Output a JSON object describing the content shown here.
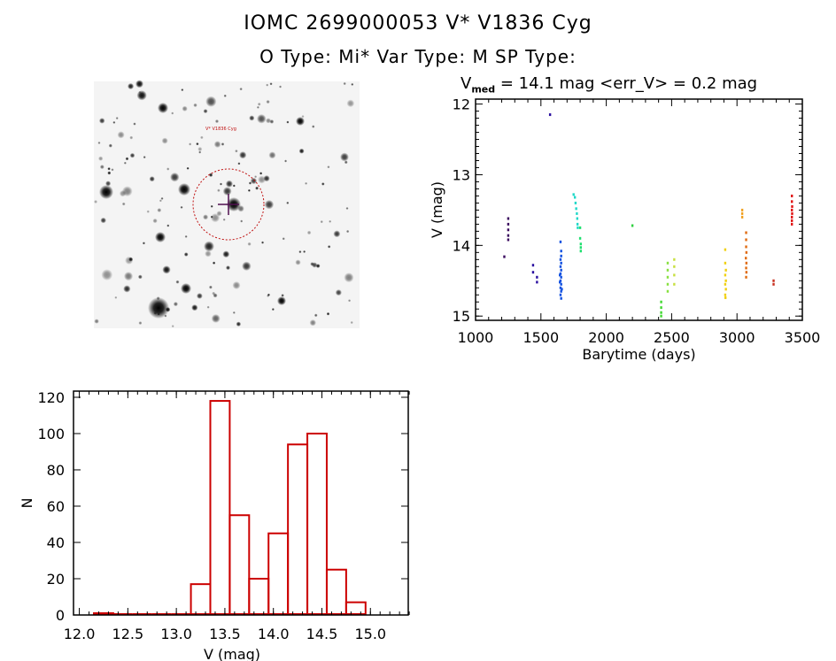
{
  "header": {
    "title": "IOMC 2699000053    V* V1836 Cyg",
    "subtitle": "O Type: Mi*  Var Type: M  SP Type:"
  },
  "image_panel": {
    "target_label": "V* V1836 Cyg"
  },
  "chart_data": [
    {
      "type": "scatter",
      "title_prefix": "V",
      "title_sub": "med",
      "title_rest": " = 14.1 mag <err_V> = 0.2 mag",
      "xlabel": "Barytime (days)",
      "ylabel": "V (mag)",
      "xlim": [
        1000,
        3500
      ],
      "ylim": [
        15.06,
        11.93
      ],
      "xticks": [
        1000,
        1500,
        2000,
        2500,
        3000,
        3500
      ],
      "yticks": [
        12,
        13,
        14,
        15
      ],
      "series": [
        {
          "color": "#3a0a5e",
          "points": [
            [
              1220,
              14.16
            ],
            [
              1250,
              13.62
            ],
            [
              1250,
              13.7
            ],
            [
              1250,
              13.78
            ],
            [
              1250,
              13.86
            ],
            [
              1250,
              13.92
            ]
          ]
        },
        {
          "color": "#2a10a0",
          "points": [
            [
              1440,
              14.28
            ],
            [
              1440,
              14.38
            ],
            [
              1470,
              14.45
            ],
            [
              1470,
              14.52
            ],
            [
              1570,
              12.15
            ]
          ]
        },
        {
          "color": "#1050e0",
          "points": [
            [
              1650,
              13.95
            ],
            [
              1655,
              14.08
            ],
            [
              1655,
              14.15
            ],
            [
              1650,
              14.2
            ],
            [
              1655,
              14.25
            ],
            [
              1650,
              14.3
            ],
            [
              1655,
              14.35
            ],
            [
              1650,
              14.4
            ],
            [
              1655,
              14.45
            ],
            [
              1650,
              14.5
            ],
            [
              1655,
              14.55
            ],
            [
              1650,
              14.6
            ],
            [
              1655,
              14.65
            ],
            [
              1650,
              14.7
            ],
            [
              1655,
              14.75
            ],
            [
              1645,
              14.42
            ],
            [
              1645,
              14.52
            ],
            [
              1660,
              14.62
            ]
          ]
        },
        {
          "color": "#20d8c8",
          "points": [
            [
              1750,
              13.28
            ],
            [
              1760,
              13.32
            ],
            [
              1765,
              13.4
            ],
            [
              1770,
              13.48
            ],
            [
              1775,
              13.55
            ],
            [
              1778,
              13.62
            ],
            [
              1780,
              13.7
            ],
            [
              1782,
              13.75
            ]
          ]
        },
        {
          "color": "#20e070",
          "points": [
            [
              1800,
              13.75
            ],
            [
              1800,
              13.9
            ],
            [
              1805,
              13.98
            ],
            [
              1805,
              14.03
            ],
            [
              1805,
              14.08
            ]
          ]
        },
        {
          "color": "#30d040",
          "points": [
            [
              2200,
              13.72
            ]
          ]
        },
        {
          "color": "#40d830",
          "points": [
            [
              2420,
              14.8
            ],
            [
              2420,
              14.88
            ],
            [
              2420,
              14.95
            ],
            [
              2420,
              15.0
            ]
          ]
        },
        {
          "color": "#88e040",
          "points": [
            [
              2470,
              14.25
            ],
            [
              2470,
              14.35
            ],
            [
              2470,
              14.45
            ],
            [
              2470,
              14.55
            ],
            [
              2470,
              14.65
            ]
          ]
        },
        {
          "color": "#c8e040",
          "points": [
            [
              2520,
              14.2
            ],
            [
              2520,
              14.3
            ],
            [
              2520,
              14.42
            ],
            [
              2520,
              14.55
            ]
          ]
        },
        {
          "color": "#f0d010",
          "points": [
            [
              2910,
              14.06
            ],
            [
              2910,
              14.25
            ],
            [
              2915,
              14.35
            ],
            [
              2910,
              14.42
            ],
            [
              2915,
              14.5
            ],
            [
              2910,
              14.55
            ],
            [
              2915,
              14.62
            ],
            [
              2910,
              14.7
            ],
            [
              2912,
              14.74
            ]
          ]
        },
        {
          "color": "#f0a020",
          "points": [
            [
              3040,
              13.5
            ],
            [
              3040,
              13.55
            ],
            [
              3040,
              13.6
            ]
          ]
        },
        {
          "color": "#e06a10",
          "points": [
            [
              3070,
              13.82
            ],
            [
              3070,
              13.92
            ],
            [
              3070,
              14.02
            ],
            [
              3072,
              14.1
            ],
            [
              3068,
              14.18
            ],
            [
              3072,
              14.25
            ],
            [
              3070,
              14.32
            ],
            [
              3072,
              14.38
            ],
            [
              3070,
              14.45
            ]
          ]
        },
        {
          "color": "#c83020",
          "points": [
            [
              3280,
              14.5
            ],
            [
              3280,
              14.55
            ]
          ]
        },
        {
          "color": "#e01010",
          "points": [
            [
              3420,
              13.3
            ],
            [
              3420,
              13.38
            ],
            [
              3422,
              13.45
            ],
            [
              3420,
              13.5
            ],
            [
              3422,
              13.55
            ],
            [
              3420,
              13.6
            ],
            [
              3420,
              13.65
            ],
            [
              3420,
              13.7
            ]
          ]
        }
      ]
    },
    {
      "type": "bar",
      "xlabel": "V (mag)",
      "ylabel": "N",
      "xlim": [
        11.94,
        15.39
      ],
      "ylim": [
        0,
        123.4
      ],
      "xticks": [
        "12.0",
        "12.5",
        "13.0",
        "13.5",
        "14.0",
        "14.5",
        "15.0"
      ],
      "yticks": [
        "0",
        "20",
        "40",
        "60",
        "80",
        "100",
        "120"
      ],
      "bar_color": "#cc0000",
      "bin_width": 0.2,
      "bin_starts": [
        12.15,
        12.35,
        12.55,
        12.75,
        12.95,
        13.15,
        13.35,
        13.55,
        13.75,
        13.95,
        14.15,
        14.35,
        14.55,
        14.75
      ],
      "values": [
        1,
        0,
        0,
        0,
        0,
        17,
        118,
        55,
        20,
        45,
        94,
        100,
        25,
        7
      ]
    }
  ]
}
